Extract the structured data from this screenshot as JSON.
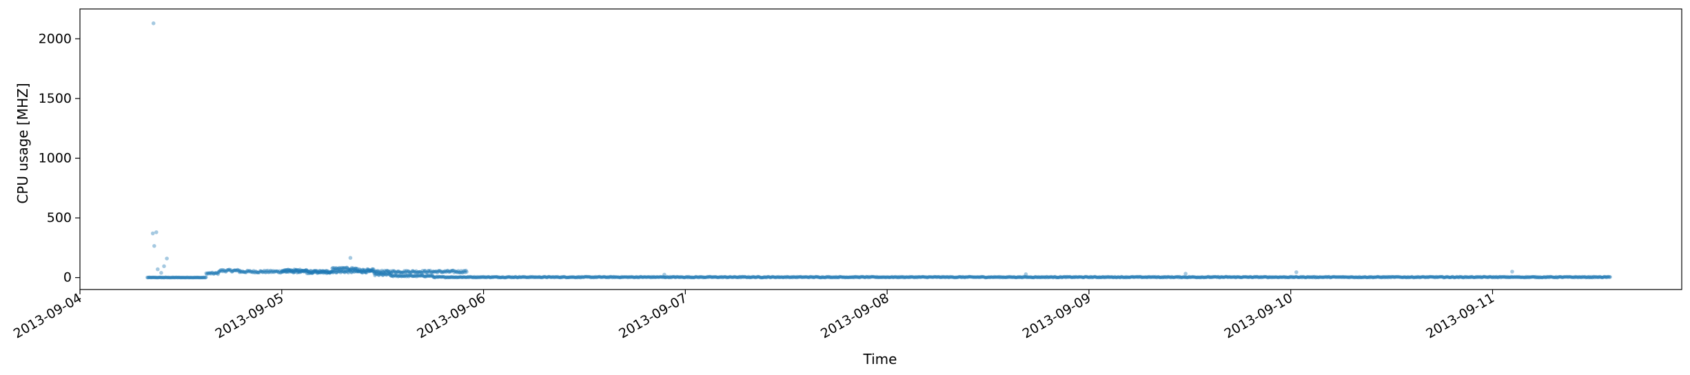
{
  "chart_data": {
    "type": "scatter",
    "xlabel": "Time",
    "ylabel": "CPU usage [MHZ]",
    "xlim": [
      "2013-09-04 00:00",
      "2013-09-11 22:30"
    ],
    "ylim": [
      -100,
      2250
    ],
    "x_ticks": [
      "2013-09-04",
      "2013-09-05",
      "2013-09-06",
      "2013-09-07",
      "2013-09-08",
      "2013-09-09",
      "2013-09-10",
      "2013-09-11"
    ],
    "y_ticks": [
      0,
      500,
      1000,
      1500,
      2000
    ],
    "grid": false,
    "legend": "none",
    "marker_color": "#1f77b4",
    "marker_alpha": 0.4,
    "series": [
      {
        "sampling_interval_minutes": 5,
        "segments": [
          {
            "start": "2013-09-04 08:00",
            "end": "2013-09-04 15:00",
            "level": 0,
            "noise": 3
          },
          {
            "start": "2013-09-04 15:00",
            "end": "2013-09-04 16:30",
            "level": 35,
            "noise": 8
          },
          {
            "start": "2013-09-04 16:30",
            "end": "2013-09-04 19:00",
            "level": 58,
            "noise": 10
          },
          {
            "start": "2013-09-04 19:00",
            "end": "2013-09-05 22:00",
            "level": 50,
            "noise": 10
          },
          {
            "start": "2013-09-05 00:00",
            "end": "2013-09-05 03:00",
            "level": 60,
            "noise": 10
          },
          {
            "start": "2013-09-05 03:00",
            "end": "2013-09-05 06:00",
            "level": 45,
            "noise": 10
          },
          {
            "start": "2013-09-05 06:00",
            "end": "2013-09-05 09:00",
            "level": 75,
            "noise": 10
          },
          {
            "start": "2013-09-05 09:00",
            "end": "2013-09-05 11:00",
            "level": 60,
            "noise": 12
          },
          {
            "start": "2013-09-05 11:00",
            "end": "2013-09-05 13:00",
            "level": 25,
            "noise": 10
          },
          {
            "start": "2013-09-05 13:00",
            "end": "2013-09-05 18:00",
            "level": 14,
            "noise": 6
          },
          {
            "start": "2013-09-05 18:00",
            "end": "2013-09-11 14:00",
            "level": 4,
            "noise": 4
          }
        ],
        "outliers": [
          {
            "x": "2013-09-04 08:45",
            "y": 2130
          },
          {
            "x": "2013-09-04 08:40",
            "y": 370
          },
          {
            "x": "2013-09-04 09:05",
            "y": 380
          },
          {
            "x": "2013-09-04 08:50",
            "y": 265
          },
          {
            "x": "2013-09-04 10:20",
            "y": 160
          },
          {
            "x": "2013-09-04 10:00",
            "y": 95
          },
          {
            "x": "2013-09-04 09:15",
            "y": 70
          },
          {
            "x": "2013-09-04 09:40",
            "y": 40
          },
          {
            "x": "2013-09-05 08:10",
            "y": 165
          },
          {
            "x": "2013-09-06 21:30",
            "y": 25
          },
          {
            "x": "2013-09-08 16:30",
            "y": 28
          },
          {
            "x": "2013-09-09 11:30",
            "y": 32
          },
          {
            "x": "2013-09-10 00:40",
            "y": 45
          },
          {
            "x": "2013-09-11 02:20",
            "y": 50
          }
        ]
      }
    ]
  }
}
